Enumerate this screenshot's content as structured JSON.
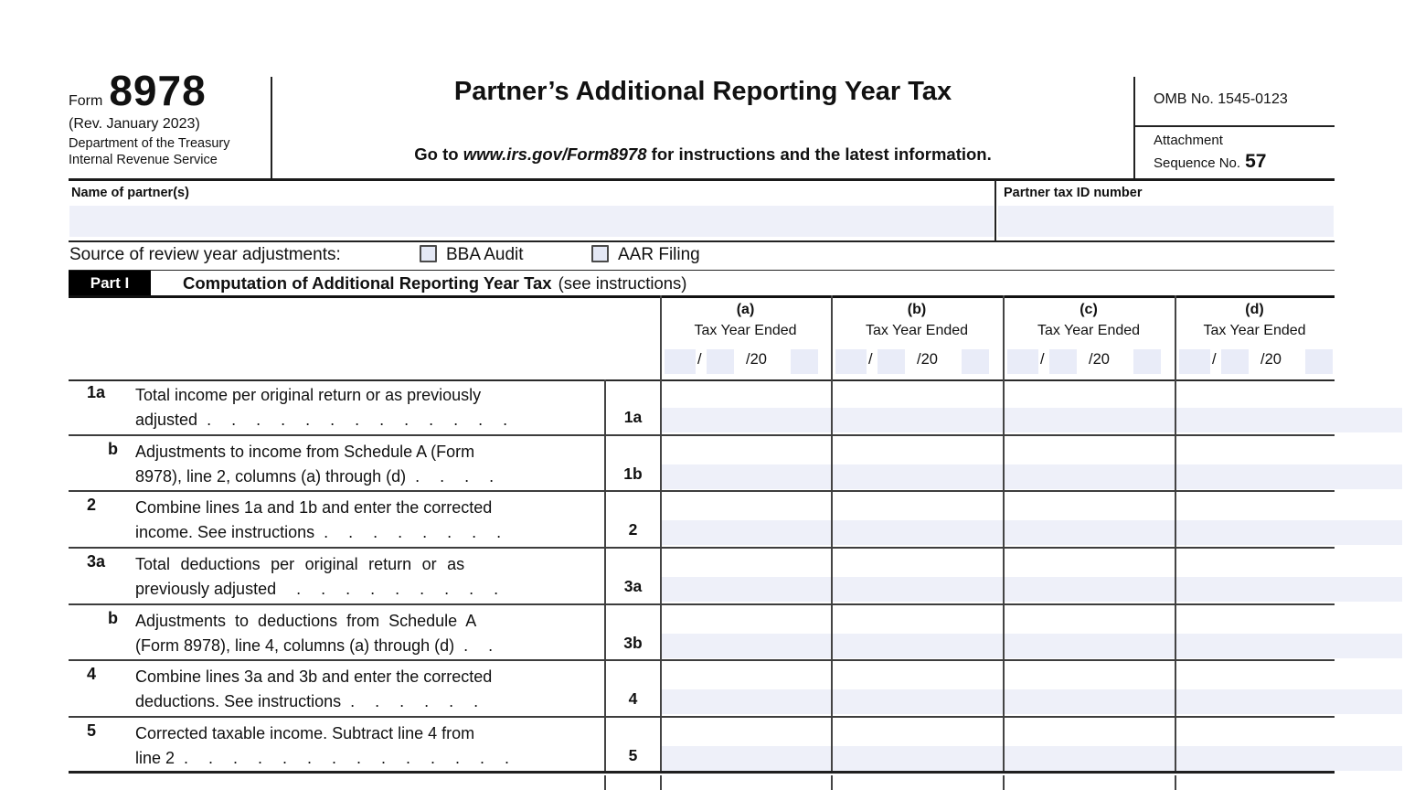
{
  "colors": {
    "input_fill": "#eef0f9",
    "date_box_fill": "#e9ecf8",
    "checkbox_fill": "#e4e8f5",
    "rule_dark": "#1a1a1a",
    "rule_mid": "#444444",
    "part_badge_bg": "#000000",
    "part_badge_text": "#ffffff"
  },
  "header": {
    "form_word": "Form",
    "form_number": "8978",
    "revision": "(Rev. January 2023)",
    "agency_line1": "Department of the Treasury",
    "agency_line2": "Internal Revenue Service",
    "title": "Partner’s Additional Reporting Year Tax",
    "goto_prefix": "Go to ",
    "goto_url": "www.irs.gov/Form8978",
    "goto_suffix": " for instructions and the latest information.",
    "omb": "OMB No. 1545-0123",
    "attachment_word": "Attachment",
    "sequence_word": "Sequence No.",
    "sequence_number": "57"
  },
  "identity": {
    "name_label": "Name of partner(s)",
    "name_value": "",
    "tin_label": "Partner tax ID number",
    "tin_value": ""
  },
  "source": {
    "label": "Source of review year adjustments:",
    "options": [
      {
        "label": "BBA Audit",
        "checked": false
      },
      {
        "label": "AAR Filing",
        "checked": false
      }
    ]
  },
  "part1": {
    "badge": "Part I",
    "title": "Computation of Additional Reporting Year Tax",
    "note": "(see instructions)"
  },
  "table": {
    "date_slash": "/",
    "date_year": "/20",
    "columns": [
      {
        "letter": "(a)",
        "label": "Tax Year Ended",
        "month": "",
        "day": "",
        "yy": ""
      },
      {
        "letter": "(b)",
        "label": "Tax Year Ended",
        "month": "",
        "day": "",
        "yy": ""
      },
      {
        "letter": "(c)",
        "label": "Tax Year Ended",
        "month": "",
        "day": "",
        "yy": ""
      },
      {
        "letter": "(d)",
        "label": "Tax Year Ended",
        "month": "",
        "day": "",
        "yy": ""
      }
    ],
    "rows": [
      {
        "num": "1a",
        "ref": "1a",
        "line1": "Total income per original return or as previously",
        "line2": "adjusted",
        "dots": ". . . . . . . . . . . . .",
        "values": [
          "",
          "",
          "",
          ""
        ]
      },
      {
        "num": "b",
        "ref": "1b",
        "line1": "Adjustments to income from Schedule A (Form",
        "line2": "8978), line 2, columns (a) through (d)",
        "dots": ". . . .",
        "values": [
          "",
          "",
          "",
          ""
        ]
      },
      {
        "num": "2",
        "ref": "2",
        "line1": "Combine lines 1a and 1b and enter the corrected",
        "line2": "income. See instructions",
        "dots": ". . . . . . . .",
        "values": [
          "",
          "",
          "",
          ""
        ]
      },
      {
        "num": "3a",
        "ref": "3a",
        "line1": "Total deductions per original return or as",
        "line2": "previously adjusted",
        "dots": ". . . . . . . . .",
        "values": [
          "",
          "",
          "",
          ""
        ]
      },
      {
        "num": "b",
        "ref": "3b",
        "line1": "Adjustments to deductions from Schedule A",
        "line2": "(Form 8978), line 4, columns (a) through (d)",
        "dots": ". .",
        "values": [
          "",
          "",
          "",
          ""
        ]
      },
      {
        "num": "4",
        "ref": "4",
        "line1": "Combine lines 3a and 3b and enter the corrected",
        "line2": "deductions. See instructions",
        "dots": ". . . . . .",
        "values": [
          "",
          "",
          "",
          ""
        ]
      },
      {
        "num": "5",
        "ref": "5",
        "line1": "Corrected taxable income. Subtract line 4 from",
        "line2": "line 2",
        "dots": ". . . . . . . . . . . . . .",
        "values": [
          "",
          "",
          "",
          ""
        ]
      }
    ]
  }
}
